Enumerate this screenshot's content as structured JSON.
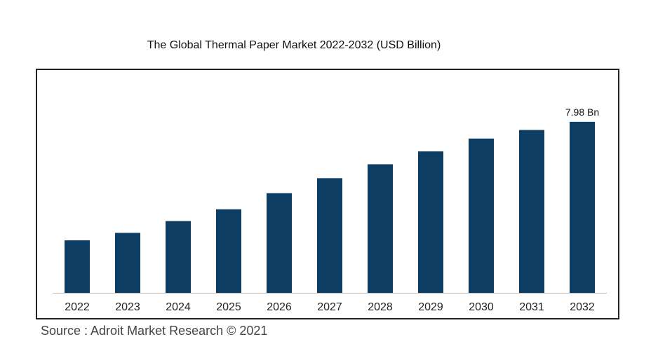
{
  "chart_data": {
    "type": "bar",
    "title": "The Global Thermal Paper Market 2022-2032 (USD Billion)",
    "categories": [
      "2022",
      "2023",
      "2024",
      "2025",
      "2026",
      "2027",
      "2028",
      "2029",
      "2030",
      "2031",
      "2032"
    ],
    "values": [
      2.45,
      2.8,
      3.35,
      3.9,
      4.65,
      5.35,
      6.0,
      6.6,
      7.2,
      7.6,
      7.98
    ],
    "annotation": {
      "category": "2032",
      "text": "7.98 Bn"
    },
    "ylim": [
      0,
      8.5
    ],
    "grid": false,
    "legend": "none",
    "colors": {
      "bar": "#0e3d63",
      "axis": "#bbbbbb"
    }
  },
  "source": "Source : Adroit Market Research © 2021"
}
